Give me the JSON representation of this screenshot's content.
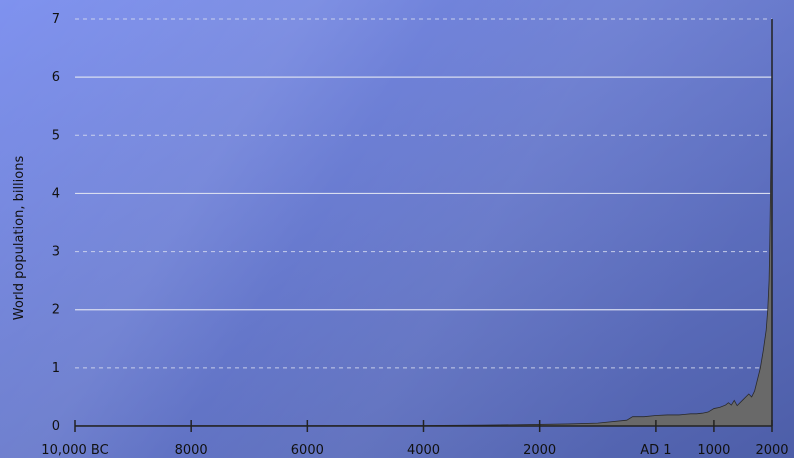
{
  "chart_data": {
    "type": "area",
    "title": "",
    "xlabel": "",
    "ylabel": "World population, billions",
    "ylim": [
      0,
      7
    ],
    "xlim": [
      -10000,
      2000
    ],
    "y_ticks": [
      0,
      1,
      2,
      3,
      4,
      5,
      6,
      7
    ],
    "x_ticks": [
      {
        "value": -10000,
        "label": "10,000 BC"
      },
      {
        "value": -8000,
        "label": "8000"
      },
      {
        "value": -6000,
        "label": "6000"
      },
      {
        "value": -4000,
        "label": "4000"
      },
      {
        "value": -2000,
        "label": "2000"
      },
      {
        "value": 1,
        "label": "AD 1"
      },
      {
        "value": 1000,
        "label": "1000"
      },
      {
        "value": 2000,
        "label": "2000"
      }
    ],
    "grid": "horizontal",
    "series": [
      {
        "fill_color": "#696969",
        "x": [
          -10000,
          -8000,
          -6000,
          -4000,
          -3000,
          -2000,
          -1500,
          -1000,
          -500,
          -400,
          -200,
          1,
          200,
          400,
          500,
          600,
          700,
          800,
          900,
          1000,
          1100,
          1200,
          1250,
          1300,
          1350,
          1400,
          1500,
          1600,
          1650,
          1700,
          1750,
          1800,
          1850,
          1900,
          1927,
          1950,
          1960,
          1974,
          1987,
          1999,
          2000
        ],
        "y": [
          0.004,
          0.005,
          0.006,
          0.008,
          0.014,
          0.027,
          0.035,
          0.05,
          0.1,
          0.16,
          0.16,
          0.18,
          0.19,
          0.19,
          0.2,
          0.21,
          0.21,
          0.22,
          0.24,
          0.3,
          0.32,
          0.36,
          0.4,
          0.36,
          0.44,
          0.35,
          0.45,
          0.55,
          0.5,
          0.6,
          0.8,
          1.0,
          1.3,
          1.65,
          2.0,
          2.5,
          3.0,
          4.0,
          5.0,
          6.0,
          6.9
        ]
      }
    ],
    "background": {
      "gradient_start": "#7f92ef",
      "gradient_end": "#4d5ea8"
    },
    "grid_color": "#d8ddf0"
  }
}
